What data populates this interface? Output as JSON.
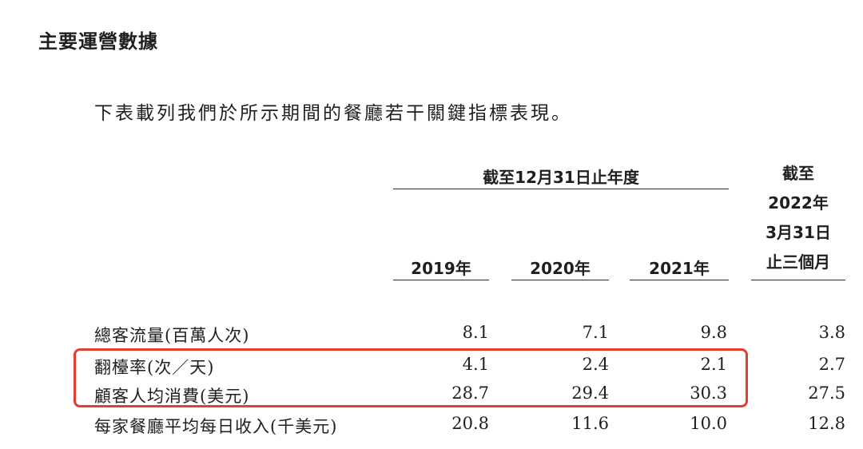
{
  "section_title": "主要運營數據",
  "intro": "下表載列我們於所示期間的餐廳若干關鍵指標表現。",
  "header": {
    "group_label": "截至12月31日止年度",
    "years": [
      "2019年",
      "2020年",
      "2021年"
    ],
    "quarter_lines": [
      "截至",
      "2022年",
      "3月31日",
      "止三個月"
    ]
  },
  "rows": [
    {
      "label": "總客流量(百萬人次)",
      "values": [
        "8.1",
        "7.1",
        "9.8",
        "3.8"
      ]
    },
    {
      "label": "翻檯率(次／天)",
      "values": [
        "4.1",
        "2.4",
        "2.1",
        "2.7"
      ]
    },
    {
      "label": "顧客人均消費(美元)",
      "values": [
        "28.7",
        "29.4",
        "30.3",
        "27.5"
      ]
    },
    {
      "label": "每家餐廳平均每日收入(千美元)",
      "values": [
        "20.8",
        "11.6",
        "10.0",
        "12.8"
      ]
    }
  ],
  "highlight_color": "#e0402f"
}
